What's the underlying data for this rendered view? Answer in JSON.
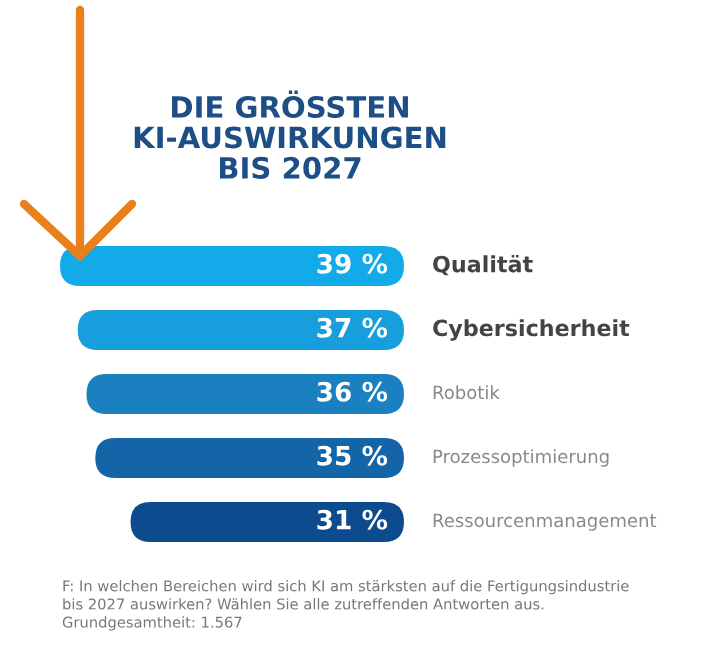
{
  "chart_data": {
    "type": "other",
    "title": "DIE GRÖSSTEN\nKI-AUSWIRKUNGEN\nBIS 2027",
    "categories": [
      "Qualität",
      "Cybersicherheit",
      "Robotik",
      "Prozessoptimierung",
      "Ressourcenmanagement"
    ],
    "values": [
      39,
      37,
      36,
      35,
      31
    ],
    "value_labels": [
      "39 %",
      "37 %",
      "36 %",
      "35 %",
      "31 %"
    ],
    "colors": [
      "#12aae8",
      "#169fdc",
      "#1a80c0",
      "#1464a8",
      "#0c4c8e"
    ],
    "annotations": [
      "F: In welchen Bereichen wird sich KI am stärksten auf die Fertigungsindustrie\nbis 2027 auswirken? Wählen Sie alle zutreffenden Antworten aus.\nGrundgesamtheit: 1.567"
    ]
  }
}
